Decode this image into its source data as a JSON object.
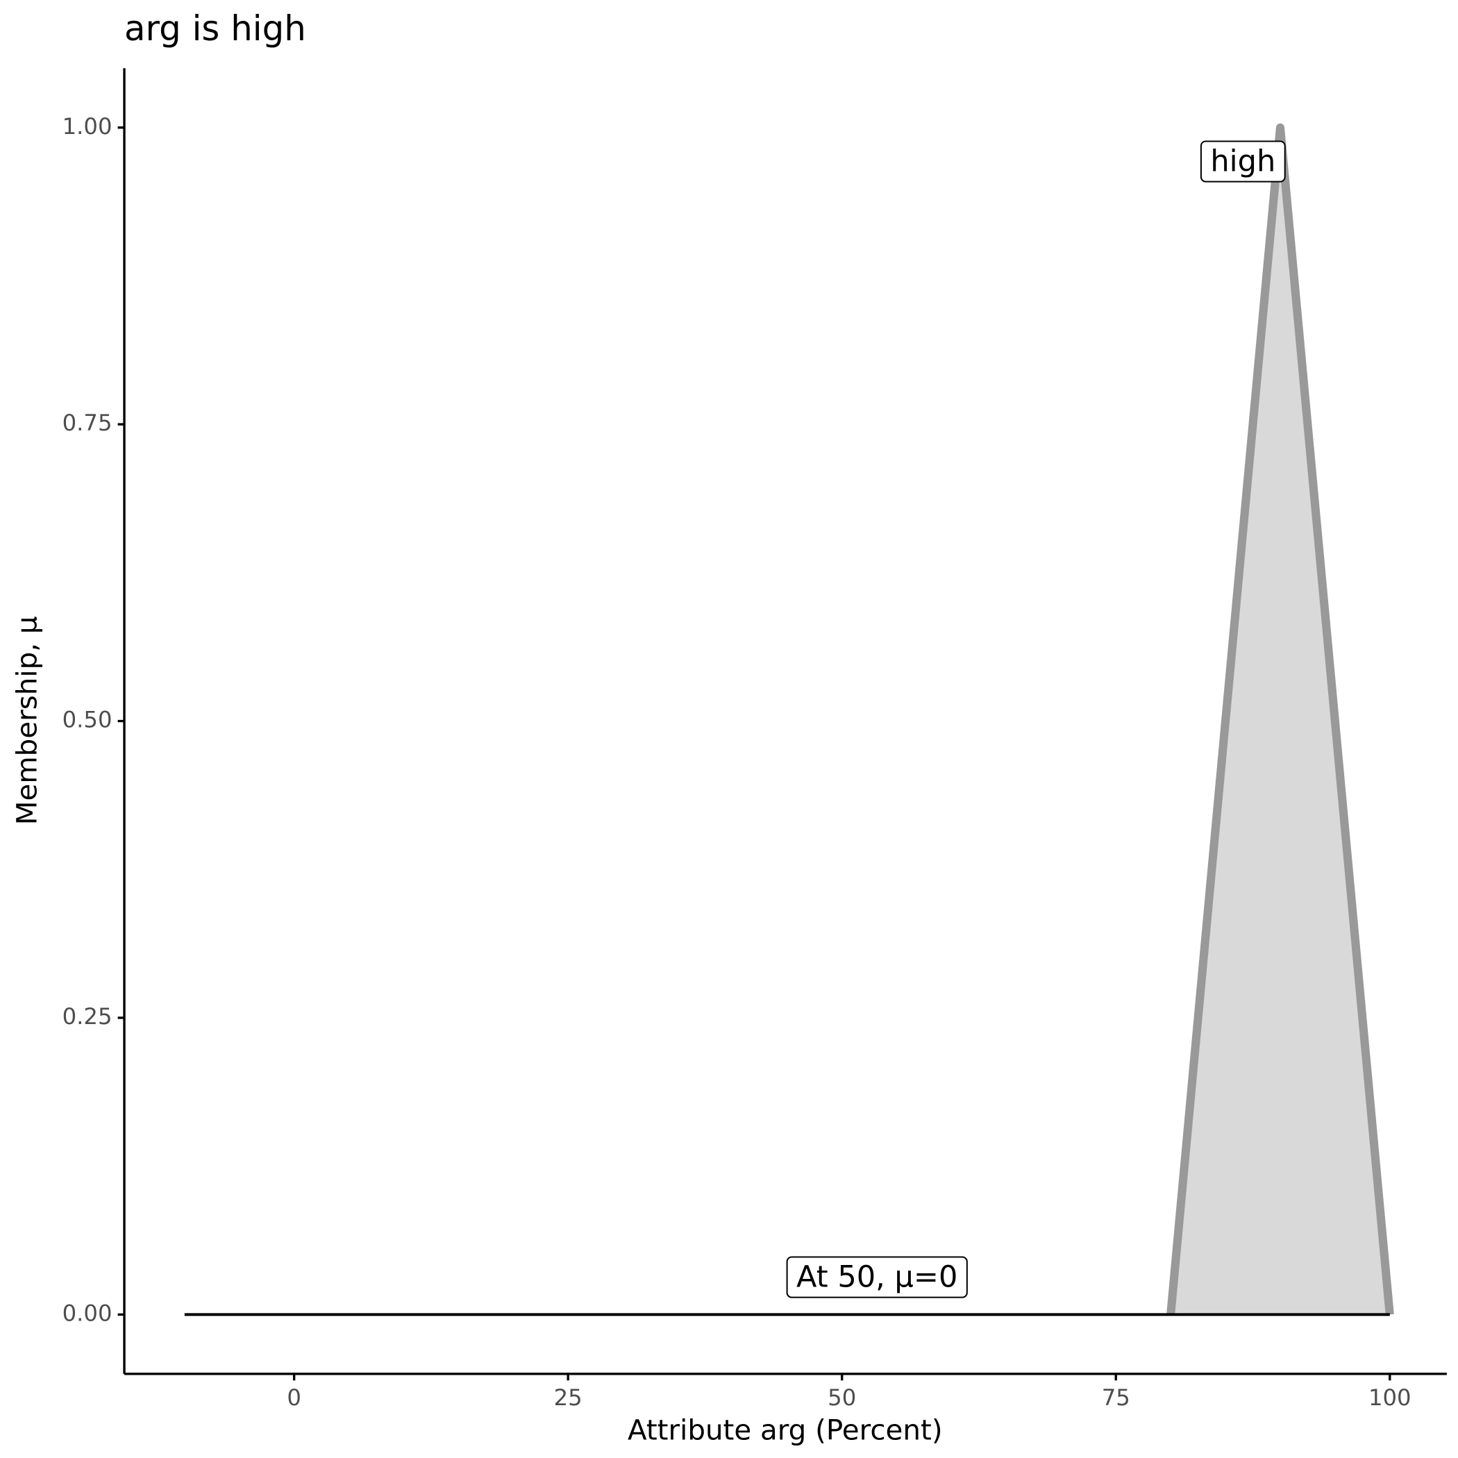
{
  "chart_data": {
    "type": "line",
    "title": "arg is high",
    "xlabel": "Attribute arg (Percent)",
    "ylabel": "Membership, μ",
    "xlim": [
      -15.5,
      105.2
    ],
    "ylim": [
      -0.05,
      1.05
    ],
    "xticks": [
      0,
      25,
      50,
      75,
      100
    ],
    "yticks": [
      {
        "value": 0,
        "label": "0.00"
      },
      {
        "value": 0.25,
        "label": "0.25"
      },
      {
        "value": 0.5,
        "label": "0.50"
      },
      {
        "value": 0.75,
        "label": "0.75"
      },
      {
        "value": 1,
        "label": "1.00"
      }
    ],
    "series": [
      {
        "x": [
          80,
          90,
          100
        ],
        "values": [
          0,
          1,
          0
        ],
        "color": "#999999",
        "fill": "#d9d9d9"
      },
      {
        "x": [
          -10,
          100
        ],
        "values": [
          0,
          0
        ],
        "color": "#000000"
      }
    ],
    "annotations": [
      {
        "text": "high",
        "x": 86.6,
        "y": 0.97
      },
      {
        "text": "At 50, μ=0",
        "x": 53.2,
        "y": 0.03
      }
    ]
  }
}
